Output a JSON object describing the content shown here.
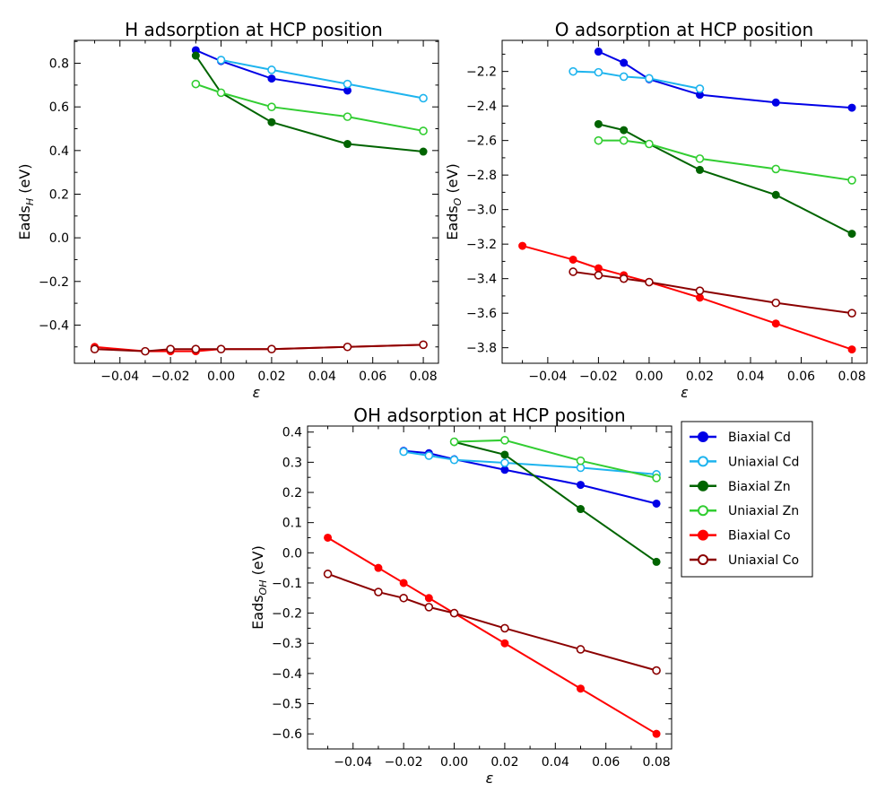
{
  "colors": {
    "Biaxial Cd": "#0000e6",
    "Uniaxial Cd": "#1eb4ee",
    "Biaxial Zn": "#006400",
    "Uniaxial Zn": "#32cd32",
    "Biaxial Co": "#ff0000",
    "Uniaxial Co": "#8b0000"
  },
  "legend": [
    "Biaxial Cd",
    "Uniaxial Cd",
    "Biaxial Zn",
    "Uniaxial Zn",
    "Biaxial Co",
    "Uniaxial Co"
  ],
  "chart_data": [
    {
      "type": "line",
      "title": "H adsorption at HCP position",
      "xlabel": "ε",
      "ylabel_main": "Eads",
      "ylabel_sub": "H",
      "ylabel_unit": " (eV)",
      "xlim": [
        -0.058,
        0.086
      ],
      "ylim": [
        -0.575,
        0.905
      ],
      "xticks": [
        -0.04,
        -0.02,
        0.0,
        0.02,
        0.04,
        0.06,
        0.08
      ],
      "xtick_labels": [
        "−0.04",
        "−0.02",
        "0.00",
        "0.02",
        "0.04",
        "0.06",
        "0.08"
      ],
      "yticks": [
        -0.4,
        -0.2,
        0.0,
        0.2,
        0.4,
        0.6,
        0.8
      ],
      "ytick_labels": [
        "−0.4",
        "−0.2",
        "0.0",
        "0.2",
        "0.4",
        "0.6",
        "0.8"
      ],
      "series": [
        {
          "name": "Biaxial Cd",
          "filled": true,
          "x": [
            -0.01,
            0.0,
            0.02,
            0.05
          ],
          "y": [
            0.86,
            0.81,
            0.73,
            0.675
          ]
        },
        {
          "name": "Uniaxial Cd",
          "filled": false,
          "x": [
            0.0,
            0.02,
            0.05,
            0.08
          ],
          "y": [
            0.815,
            0.77,
            0.705,
            0.64
          ]
        },
        {
          "name": "Biaxial Zn",
          "filled": true,
          "x": [
            -0.01,
            0.0,
            0.02,
            0.05,
            0.08
          ],
          "y": [
            0.835,
            0.665,
            0.53,
            0.43,
            0.395
          ]
        },
        {
          "name": "Uniaxial Zn",
          "filled": false,
          "x": [
            -0.01,
            0.0,
            0.02,
            0.05,
            0.08
          ],
          "y": [
            0.705,
            0.665,
            0.6,
            0.555,
            0.49
          ]
        },
        {
          "name": "Biaxial Co",
          "filled": true,
          "x": [
            -0.05,
            -0.03,
            -0.02,
            -0.01,
            0.0,
            0.02,
            0.05,
            0.08
          ],
          "y": [
            -0.5,
            -0.52,
            -0.52,
            -0.52,
            -0.51,
            -0.51,
            -0.5,
            -0.49
          ]
        },
        {
          "name": "Uniaxial Co",
          "filled": false,
          "x": [
            -0.05,
            -0.03,
            -0.02,
            -0.01,
            0.0,
            0.02,
            0.05,
            0.08
          ],
          "y": [
            -0.51,
            -0.52,
            -0.51,
            -0.51,
            -0.51,
            -0.51,
            -0.5,
            -0.49
          ]
        }
      ]
    },
    {
      "type": "line",
      "title": "O adsorption at HCP position",
      "xlabel": "ε",
      "ylabel_main": "Eads",
      "ylabel_sub": "O",
      "ylabel_unit": " (eV)",
      "xlim": [
        -0.058,
        0.086
      ],
      "ylim": [
        -3.89,
        -2.02
      ],
      "xticks": [
        -0.04,
        -0.02,
        0.0,
        0.02,
        0.04,
        0.06,
        0.08
      ],
      "xtick_labels": [
        "−0.04",
        "−0.02",
        "0.00",
        "0.02",
        "0.04",
        "0.06",
        "0.08"
      ],
      "yticks": [
        -3.8,
        -3.6,
        -3.4,
        -3.2,
        -3.0,
        -2.8,
        -2.6,
        -2.4,
        -2.2
      ],
      "ytick_labels": [
        "−3.8",
        "−3.6",
        "−3.4",
        "−3.2",
        "−3.0",
        "−2.8",
        "−2.6",
        "−2.4",
        "−2.2"
      ],
      "series": [
        {
          "name": "Biaxial Cd",
          "filled": true,
          "x": [
            -0.02,
            -0.01,
            0.0,
            0.02,
            0.05,
            0.08
          ],
          "y": [
            -2.085,
            -2.15,
            -2.245,
            -2.335,
            -2.38,
            -2.41
          ]
        },
        {
          "name": "Uniaxial Cd",
          "filled": false,
          "x": [
            -0.03,
            -0.02,
            -0.01,
            0.0,
            0.02
          ],
          "y": [
            -2.2,
            -2.205,
            -2.23,
            -2.24,
            -2.3
          ]
        },
        {
          "name": "Biaxial Zn",
          "filled": true,
          "x": [
            -0.02,
            -0.01,
            0.0,
            0.02,
            0.05,
            0.08
          ],
          "y": [
            -2.505,
            -2.54,
            -2.62,
            -2.77,
            -2.915,
            -3.14
          ]
        },
        {
          "name": "Uniaxial Zn",
          "filled": false,
          "x": [
            -0.02,
            -0.01,
            0.0,
            0.02,
            0.05,
            0.08
          ],
          "y": [
            -2.6,
            -2.6,
            -2.62,
            -2.705,
            -2.765,
            -2.83
          ]
        },
        {
          "name": "Biaxial Co",
          "filled": true,
          "x": [
            -0.05,
            -0.03,
            -0.02,
            -0.01,
            0.0,
            0.02,
            0.05,
            0.08
          ],
          "y": [
            -3.21,
            -3.29,
            -3.34,
            -3.38,
            -3.42,
            -3.51,
            -3.66,
            -3.81
          ]
        },
        {
          "name": "Uniaxial Co",
          "filled": false,
          "x": [
            -0.03,
            -0.02,
            -0.01,
            0.0,
            0.02,
            0.05,
            0.08
          ],
          "y": [
            -3.36,
            -3.38,
            -3.4,
            -3.42,
            -3.47,
            -3.54,
            -3.6
          ]
        }
      ]
    },
    {
      "type": "line",
      "title": "OH adsorption at HCP position",
      "xlabel": "ε",
      "ylabel_main": "Eads",
      "ylabel_sub": "OH",
      "ylabel_unit": " (eV)",
      "xlim": [
        -0.058,
        0.086
      ],
      "ylim": [
        -0.65,
        0.42
      ],
      "xticks": [
        -0.04,
        -0.02,
        0.0,
        0.02,
        0.04,
        0.06,
        0.08
      ],
      "xtick_labels": [
        "−0.04",
        "−0.02",
        "0.00",
        "0.02",
        "0.04",
        "0.06",
        "0.08"
      ],
      "yticks": [
        -0.6,
        -0.5,
        -0.4,
        -0.3,
        -0.2,
        -0.1,
        0.0,
        0.1,
        0.2,
        0.3,
        0.4
      ],
      "ytick_labels": [
        "−0.6",
        "−0.5",
        "−0.4",
        "−0.3",
        "−0.2",
        "−0.1",
        "0.0",
        "0.1",
        "0.2",
        "0.3",
        "0.4"
      ],
      "series": [
        {
          "name": "Biaxial Cd",
          "filled": true,
          "x": [
            -0.02,
            -0.01,
            0.0,
            0.02,
            0.05,
            0.08
          ],
          "y": [
            0.338,
            0.33,
            0.31,
            0.275,
            0.225,
            0.163
          ]
        },
        {
          "name": "Uniaxial Cd",
          "filled": false,
          "x": [
            -0.02,
            -0.01,
            0.0,
            0.02,
            0.05,
            0.08
          ],
          "y": [
            0.335,
            0.322,
            0.308,
            0.298,
            0.282,
            0.26
          ]
        },
        {
          "name": "Biaxial Zn",
          "filled": true,
          "x": [
            0.0,
            0.02,
            0.05,
            0.08
          ],
          "y": [
            0.367,
            0.325,
            0.145,
            -0.03
          ]
        },
        {
          "name": "Uniaxial Zn",
          "filled": false,
          "x": [
            0.0,
            0.02,
            0.05,
            0.08
          ],
          "y": [
            0.368,
            0.373,
            0.305,
            0.248
          ]
        },
        {
          "name": "Biaxial Co",
          "filled": true,
          "x": [
            -0.05,
            -0.03,
            -0.02,
            -0.01,
            0.0,
            0.02,
            0.05,
            0.08
          ],
          "y": [
            0.05,
            -0.05,
            -0.1,
            -0.15,
            -0.2,
            -0.3,
            -0.45,
            -0.6
          ]
        },
        {
          "name": "Uniaxial Co",
          "filled": false,
          "x": [
            -0.05,
            -0.03,
            -0.02,
            -0.01,
            0.0,
            0.02,
            0.05,
            0.08
          ],
          "y": [
            -0.07,
            -0.13,
            -0.15,
            -0.18,
            -0.2,
            -0.25,
            -0.32,
            -0.39
          ]
        }
      ]
    }
  ]
}
